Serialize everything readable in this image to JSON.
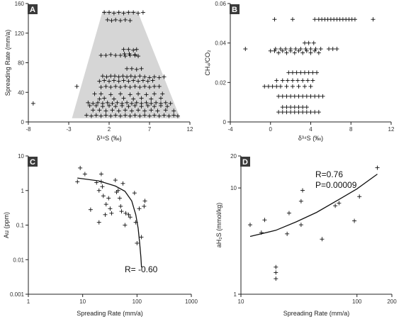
{
  "chart_data": [
    {
      "panel": "A",
      "type": "scatter",
      "xlabel": "δ³⁴S (‰)",
      "ylabel": "Spreading Rate (mm/a)",
      "xlim": [
        -8,
        12
      ],
      "ylim": [
        0,
        160
      ],
      "xticks": [
        "-8",
        "-3",
        "2",
        "7",
        "12"
      ],
      "yticks": [
        "0",
        "40",
        "80",
        "120",
        "160"
      ],
      "xscale": "linear",
      "yscale": "linear",
      "shaded_region": [
        [
          -2.6,
          5
        ],
        [
          1.2,
          150
        ],
        [
          5.5,
          150
        ],
        [
          10.8,
          5
        ]
      ],
      "points": [
        [
          -7.4,
          25
        ],
        [
          -2.0,
          48
        ],
        [
          1.4,
          148
        ],
        [
          2.0,
          148
        ],
        [
          2.6,
          147
        ],
        [
          3.2,
          148
        ],
        [
          3.8,
          147
        ],
        [
          4.4,
          148
        ],
        [
          5.0,
          148
        ],
        [
          5.6,
          147
        ],
        [
          6.2,
          148
        ],
        [
          1.8,
          138
        ],
        [
          2.3,
          137
        ],
        [
          2.8,
          138
        ],
        [
          3.4,
          137
        ],
        [
          4.0,
          138
        ],
        [
          4.6,
          137
        ],
        [
          3.8,
          98
        ],
        [
          4.4,
          98
        ],
        [
          5.0,
          97
        ],
        [
          5.4,
          98
        ],
        [
          3.9,
          92
        ],
        [
          4.5,
          92
        ],
        [
          5.2,
          91
        ],
        [
          1.0,
          90
        ],
        [
          1.6,
          90
        ],
        [
          2.2,
          91
        ],
        [
          2.8,
          90
        ],
        [
          3.4,
          90
        ],
        [
          4.0,
          89
        ],
        [
          4.6,
          90
        ],
        [
          5.2,
          90
        ],
        [
          5.6,
          89
        ],
        [
          4.2,
          72
        ],
        [
          4.8,
          72
        ],
        [
          5.4,
          71
        ],
        [
          6.0,
          72
        ],
        [
          1.2,
          62
        ],
        [
          1.7,
          61
        ],
        [
          2.2,
          62
        ],
        [
          2.7,
          62
        ],
        [
          3.2,
          61
        ],
        [
          3.7,
          62
        ],
        [
          4.2,
          61
        ],
        [
          4.7,
          62
        ],
        [
          5.2,
          61
        ],
        [
          5.8,
          62
        ],
        [
          6.4,
          61
        ],
        [
          7.0,
          60
        ],
        [
          7.6,
          61
        ],
        [
          8.2,
          60
        ],
        [
          8.8,
          61
        ],
        [
          0.8,
          55
        ],
        [
          1.4,
          56
        ],
        [
          2.0,
          55
        ],
        [
          2.6,
          56
        ],
        [
          3.2,
          55
        ],
        [
          3.8,
          56
        ],
        [
          4.4,
          55
        ],
        [
          5.0,
          56
        ],
        [
          5.6,
          55
        ],
        [
          6.2,
          56
        ],
        [
          6.8,
          55
        ],
        [
          7.4,
          56
        ],
        [
          1.0,
          47
        ],
        [
          1.6,
          48
        ],
        [
          2.2,
          47
        ],
        [
          2.8,
          48
        ],
        [
          3.4,
          47
        ],
        [
          4.0,
          48
        ],
        [
          4.6,
          47
        ],
        [
          5.2,
          48
        ],
        [
          5.8,
          47
        ],
        [
          6.4,
          48
        ],
        [
          7.0,
          47
        ],
        [
          7.6,
          48
        ],
        [
          8.2,
          48
        ],
        [
          0.2,
          38
        ],
        [
          1.0,
          38
        ],
        [
          2.2,
          37
        ],
        [
          3.4,
          38
        ],
        [
          4.6,
          37
        ],
        [
          5.6,
          38
        ],
        [
          6.6,
          37
        ],
        [
          7.6,
          38
        ],
        [
          8.6,
          38
        ],
        [
          0.8,
          31
        ],
        [
          1.4,
          32
        ],
        [
          2.6,
          31
        ],
        [
          3.8,
          32
        ],
        [
          5.0,
          31
        ],
        [
          6.0,
          32
        ],
        [
          7.2,
          31
        ],
        [
          8.4,
          32
        ],
        [
          -0.6,
          26
        ],
        [
          0.0,
          25
        ],
        [
          0.6,
          26
        ],
        [
          1.2,
          25
        ],
        [
          1.8,
          26
        ],
        [
          2.4,
          25
        ],
        [
          3.0,
          26
        ],
        [
          3.6,
          25
        ],
        [
          4.2,
          26
        ],
        [
          4.8,
          25
        ],
        [
          5.4,
          26
        ],
        [
          6.0,
          25
        ],
        [
          6.6,
          26
        ],
        [
          7.2,
          25
        ],
        [
          7.8,
          26
        ],
        [
          8.4,
          25
        ],
        [
          9.0,
          26
        ],
        [
          9.6,
          25
        ],
        [
          -0.4,
          22
        ],
        [
          0.4,
          22
        ],
        [
          1.2,
          21
        ],
        [
          2.0,
          22
        ],
        [
          2.8,
          21
        ],
        [
          3.6,
          22
        ],
        [
          4.4,
          21
        ],
        [
          5.2,
          22
        ],
        [
          6.0,
          21
        ],
        [
          6.8,
          22
        ],
        [
          7.6,
          21
        ],
        [
          8.4,
          22
        ],
        [
          9.2,
          21
        ],
        [
          0.0,
          16
        ],
        [
          0.8,
          16
        ],
        [
          1.6,
          15
        ],
        [
          2.4,
          16
        ],
        [
          3.2,
          15
        ],
        [
          4.0,
          16
        ],
        [
          4.8,
          15
        ],
        [
          5.6,
          16
        ],
        [
          6.4,
          15
        ],
        [
          7.2,
          16
        ],
        [
          8.0,
          15
        ],
        [
          9.0,
          16
        ],
        [
          10.0,
          15
        ],
        [
          -0.8,
          9
        ],
        [
          -0.2,
          8
        ],
        [
          0.4,
          9
        ],
        [
          1.0,
          8
        ],
        [
          1.6,
          9
        ],
        [
          2.2,
          8
        ],
        [
          2.8,
          9
        ],
        [
          3.4,
          8
        ],
        [
          4.0,
          9
        ],
        [
          4.6,
          8
        ],
        [
          5.2,
          9
        ],
        [
          5.8,
          8
        ],
        [
          6.4,
          9
        ],
        [
          7.0,
          8
        ],
        [
          7.6,
          9
        ],
        [
          8.2,
          8
        ],
        [
          8.8,
          9
        ],
        [
          9.4,
          8
        ],
        [
          10.0,
          9
        ],
        [
          10.5,
          8
        ]
      ]
    },
    {
      "panel": "B",
      "type": "scatter",
      "xlabel": "δ³⁴S (‰)",
      "ylabel": "CH₄/CO₂",
      "xlim": [
        -4,
        12
      ],
      "ylim": [
        0,
        0.06
      ],
      "xticks": [
        "-4",
        "0",
        "4",
        "8",
        "12"
      ],
      "yticks": [
        "0",
        "0.02",
        "0.04",
        "0.06"
      ],
      "xscale": "linear",
      "yscale": "linear",
      "points": [
        [
          0.4,
          0.052
        ],
        [
          2.2,
          0.052
        ],
        [
          4.4,
          0.052
        ],
        [
          4.8,
          0.052
        ],
        [
          5.1,
          0.052
        ],
        [
          5.4,
          0.052
        ],
        [
          5.7,
          0.052
        ],
        [
          6.0,
          0.052
        ],
        [
          6.3,
          0.052
        ],
        [
          6.6,
          0.052
        ],
        [
          6.9,
          0.052
        ],
        [
          7.2,
          0.052
        ],
        [
          7.5,
          0.052
        ],
        [
          7.8,
          0.052
        ],
        [
          8.1,
          0.052
        ],
        [
          8.4,
          0.052
        ],
        [
          10.2,
          0.052
        ],
        [
          3.4,
          0.04
        ],
        [
          3.8,
          0.04
        ],
        [
          4.3,
          0.04
        ],
        [
          -2.5,
          0.037
        ],
        [
          0.5,
          0.037
        ],
        [
          1.0,
          0.037
        ],
        [
          1.5,
          0.037
        ],
        [
          2.0,
          0.037
        ],
        [
          2.5,
          0.037
        ],
        [
          3.0,
          0.037
        ],
        [
          3.5,
          0.037
        ],
        [
          4.0,
          0.037
        ],
        [
          4.5,
          0.037
        ],
        [
          5.0,
          0.037
        ],
        [
          5.8,
          0.037
        ],
        [
          6.2,
          0.037
        ],
        [
          6.6,
          0.037
        ],
        [
          0.0,
          0.036
        ],
        [
          0.4,
          0.036
        ],
        [
          0.8,
          0.035
        ],
        [
          1.2,
          0.036
        ],
        [
          1.6,
          0.035
        ],
        [
          2.0,
          0.036
        ],
        [
          2.4,
          0.035
        ],
        [
          2.8,
          0.036
        ],
        [
          3.2,
          0.035
        ],
        [
          3.6,
          0.036
        ],
        [
          4.0,
          0.035
        ],
        [
          4.4,
          0.036
        ],
        [
          4.8,
          0.035
        ],
        [
          1.8,
          0.025
        ],
        [
          2.2,
          0.025
        ],
        [
          2.6,
          0.025
        ],
        [
          3.0,
          0.025
        ],
        [
          3.4,
          0.025
        ],
        [
          3.8,
          0.025
        ],
        [
          4.2,
          0.025
        ],
        [
          4.6,
          0.025
        ],
        [
          0.6,
          0.021
        ],
        [
          1.2,
          0.021
        ],
        [
          1.7,
          0.021
        ],
        [
          2.2,
          0.021
        ],
        [
          2.7,
          0.021
        ],
        [
          3.2,
          0.021
        ],
        [
          3.7,
          0.021
        ],
        [
          4.2,
          0.021
        ],
        [
          -0.6,
          0.018
        ],
        [
          -0.2,
          0.018
        ],
        [
          0.2,
          0.018
        ],
        [
          0.6,
          0.018
        ],
        [
          1.0,
          0.018
        ],
        [
          1.6,
          0.018
        ],
        [
          2.2,
          0.018
        ],
        [
          2.8,
          0.018
        ],
        [
          3.4,
          0.018
        ],
        [
          4.0,
          0.018
        ],
        [
          0.8,
          0.013
        ],
        [
          1.2,
          0.013
        ],
        [
          1.6,
          0.013
        ],
        [
          2.0,
          0.013
        ],
        [
          2.4,
          0.013
        ],
        [
          2.8,
          0.013
        ],
        [
          3.2,
          0.013
        ],
        [
          3.6,
          0.013
        ],
        [
          4.0,
          0.013
        ],
        [
          4.4,
          0.013
        ],
        [
          4.8,
          0.013
        ],
        [
          5.2,
          0.013
        ],
        [
          1.2,
          0.0075
        ],
        [
          1.6,
          0.0075
        ],
        [
          2.0,
          0.0075
        ],
        [
          2.4,
          0.0075
        ],
        [
          2.8,
          0.0075
        ],
        [
          3.2,
          0.0075
        ],
        [
          3.6,
          0.0075
        ],
        [
          0.8,
          0.005
        ],
        [
          1.2,
          0.005
        ],
        [
          1.6,
          0.005
        ],
        [
          2.0,
          0.005
        ],
        [
          2.4,
          0.005
        ],
        [
          2.8,
          0.005
        ],
        [
          3.2,
          0.005
        ],
        [
          3.6,
          0.005
        ],
        [
          4.0,
          0.005
        ],
        [
          4.4,
          0.005
        ],
        [
          4.8,
          0.005
        ]
      ]
    },
    {
      "panel": "C",
      "type": "scatter",
      "xlabel": "Spreading Rate (mm/a)",
      "ylabel": "Au (ppm)",
      "xlim": [
        1,
        1000
      ],
      "ylim": [
        0.001,
        10
      ],
      "xticks": [
        "1",
        "10",
        "100",
        "1000"
      ],
      "yticks": [
        "0.001",
        "0.01",
        "0.1",
        "1",
        "10"
      ],
      "xscale": "log",
      "yscale": "log",
      "annotation": "R= -0.60",
      "fit_curve": [
        [
          8,
          2.3
        ],
        [
          20,
          1.9
        ],
        [
          40,
          1.35
        ],
        [
          60,
          0.95
        ],
        [
          80,
          0.5
        ],
        [
          95,
          0.2
        ],
        [
          105,
          0.08
        ],
        [
          112,
          0.03
        ],
        [
          118,
          0.012
        ],
        [
          121,
          0.006
        ]
      ],
      "points": [
        [
          8,
          1.8
        ],
        [
          9,
          4.5
        ],
        [
          11,
          3.0
        ],
        [
          14,
          0.28
        ],
        [
          18,
          1.7
        ],
        [
          20,
          1.0
        ],
        [
          20,
          0.12
        ],
        [
          22,
          3.0
        ],
        [
          22,
          1.8
        ],
        [
          23,
          1.3
        ],
        [
          24,
          0.7
        ],
        [
          26,
          0.2
        ],
        [
          27,
          0.4
        ],
        [
          30,
          0.6
        ],
        [
          32,
          0.3
        ],
        [
          34,
          0.22
        ],
        [
          40,
          2.0
        ],
        [
          42,
          0.9
        ],
        [
          45,
          1.0
        ],
        [
          48,
          0.6
        ],
        [
          50,
          0.35
        ],
        [
          52,
          0.25
        ],
        [
          55,
          1.6
        ],
        [
          60,
          0.1
        ],
        [
          62,
          0.22
        ],
        [
          70,
          0.2
        ],
        [
          75,
          0.17
        ],
        [
          90,
          0.85
        ],
        [
          95,
          0.12
        ],
        [
          100,
          0.03
        ],
        [
          110,
          0.3
        ],
        [
          120,
          0.045
        ],
        [
          135,
          0.35
        ],
        [
          140,
          0.5
        ]
      ]
    },
    {
      "panel": "D",
      "type": "scatter",
      "xlabel": "Spreading Rate (mm/a)",
      "ylabel": "aH₂S (mmol/kg)",
      "xlim": [
        10,
        200
      ],
      "ylim": [
        1,
        20
      ],
      "xticks": [
        "10",
        "100",
        "200"
      ],
      "yticks": [
        "1",
        "10",
        "20"
      ],
      "xscale": "log",
      "yscale": "log",
      "annotation": [
        "R=0.76",
        "P=0.00009"
      ],
      "fit_curve": [
        [
          12,
          3.5
        ],
        [
          20,
          4.0
        ],
        [
          30,
          4.8
        ],
        [
          45,
          5.9
        ],
        [
          70,
          7.8
        ],
        [
          100,
          9.8
        ],
        [
          150,
          13.5
        ]
      ],
      "points": [
        [
          12,
          4.5
        ],
        [
          15,
          3.8
        ],
        [
          16,
          5.0
        ],
        [
          20,
          1.8
        ],
        [
          20,
          1.6
        ],
        [
          20,
          1.4
        ],
        [
          25,
          3.7
        ],
        [
          26,
          5.8
        ],
        [
          33,
          4.5
        ],
        [
          33,
          7.5
        ],
        [
          34,
          9.5
        ],
        [
          50,
          3.3
        ],
        [
          65,
          6.8
        ],
        [
          70,
          7.2
        ],
        [
          95,
          4.9
        ],
        [
          105,
          8.3
        ],
        [
          150,
          15.5
        ]
      ]
    }
  ]
}
